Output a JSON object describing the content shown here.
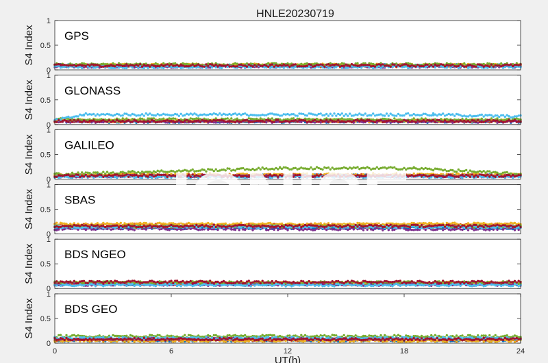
{
  "figure_title": "HNLE20230719",
  "watermark": "IONISE",
  "colors": [
    "#0072bd",
    "#d95319",
    "#edb120",
    "#7e2f8e",
    "#77ac30",
    "#4dbeee",
    "#a2142f"
  ],
  "chart_data": [
    {
      "type": "scatter",
      "panel_label": "GPS",
      "ylabel": "S4 Index",
      "xlim": [
        0,
        24
      ],
      "ylim": [
        0,
        1
      ],
      "yticks": [
        "0",
        "0.5",
        "1"
      ],
      "xticks": [],
      "xlabel": "",
      "series": [
        {
          "x": [
            0,
            24
          ],
          "y": [
            0.09,
            0.09
          ]
        },
        {
          "x": [
            0,
            24
          ],
          "y": [
            0.08,
            0.08
          ]
        },
        {
          "x": [
            0,
            24
          ],
          "y": [
            0.1,
            0.1
          ]
        },
        {
          "x": [
            0,
            24
          ],
          "y": [
            0.07,
            0.07
          ]
        },
        {
          "x": [
            0,
            24
          ],
          "y": [
            0.11,
            0.11
          ]
        },
        {
          "x": [
            0,
            24
          ],
          "y": [
            0.06,
            0.06
          ]
        },
        {
          "x": [
            0,
            24
          ],
          "y": [
            0.09,
            0.09
          ]
        }
      ]
    },
    {
      "type": "scatter",
      "panel_label": "GLONASS",
      "ylabel": "S4 Index",
      "xlim": [
        0,
        24
      ],
      "ylim": [
        0,
        1
      ],
      "yticks": [
        "0",
        "0.5",
        "1"
      ],
      "xticks": [],
      "xlabel": "",
      "series": [
        {
          "x": [
            0,
            24
          ],
          "y": [
            0.06,
            0.06
          ]
        },
        {
          "x": [
            0,
            24
          ],
          "y": [
            0.07,
            0.07
          ]
        },
        {
          "x": [
            0,
            24
          ],
          "y": [
            0.08,
            0.08
          ]
        },
        {
          "x": [
            0,
            24
          ],
          "y": [
            0.06,
            0.06
          ]
        },
        {
          "x": [
            0,
            24
          ],
          "y": [
            0.1,
            0.1
          ]
        },
        {
          "x": [
            0,
            1.5,
            19.5,
            24
          ],
          "y": [
            0.08,
            0.2,
            0.2,
            0.16
          ]
        },
        {
          "x": [
            0,
            24
          ],
          "y": [
            0.07,
            0.07
          ]
        }
      ]
    },
    {
      "type": "scatter",
      "panel_label": "GALILEO",
      "ylabel": "S4 Index",
      "xlim": [
        0,
        24
      ],
      "ylim": [
        0,
        1
      ],
      "yticks": [
        "0",
        "0.5",
        "1"
      ],
      "xticks": [],
      "xlabel": "",
      "series": [
        {
          "x": [
            0,
            24
          ],
          "y": [
            0.07,
            0.07
          ]
        },
        {
          "x": [
            0,
            24
          ],
          "y": [
            0.08,
            0.08
          ]
        },
        {
          "x": [
            0,
            24
          ],
          "y": [
            0.09,
            0.09
          ]
        },
        {
          "x": [
            0,
            24
          ],
          "y": [
            0.06,
            0.06
          ]
        },
        {
          "x": [
            0,
            11.6,
            18.5,
            24
          ],
          "y": [
            0.1,
            0.22,
            0.22,
            0.1
          ]
        },
        {
          "x": [
            0,
            24
          ],
          "y": [
            0.05,
            0.05
          ]
        },
        {
          "x": [
            0,
            24
          ],
          "y": [
            0.07,
            0.07
          ]
        }
      ]
    },
    {
      "type": "scatter",
      "panel_label": "SBAS",
      "ylabel": "S4 Index",
      "xlim": [
        0,
        24
      ],
      "ylim": [
        0,
        1
      ],
      "yticks": [
        "0",
        "0.5",
        "1"
      ],
      "xticks": [],
      "xlabel": "",
      "series": [
        {
          "x": [
            0,
            24
          ],
          "y": [
            0.12,
            0.12
          ]
        },
        {
          "x": [
            0,
            24
          ],
          "y": [
            0.18,
            0.18
          ]
        },
        {
          "x": [
            0,
            24
          ],
          "y": [
            0.2,
            0.2
          ]
        },
        {
          "x": [
            0,
            24
          ],
          "y": [
            0.1,
            0.1
          ]
        },
        {
          "x": [
            0,
            24
          ],
          "y": [
            0.15,
            0.15
          ]
        },
        {
          "x": [
            0,
            24
          ],
          "y": [
            0.14,
            0.14
          ]
        },
        {
          "x": [
            0,
            24
          ],
          "y": [
            0.16,
            0.16
          ]
        }
      ]
    },
    {
      "type": "scatter",
      "panel_label": "BDS NGEO",
      "ylabel": "S4 Index",
      "xlim": [
        0,
        24
      ],
      "ylim": [
        0,
        1
      ],
      "yticks": [
        "0",
        "0.5",
        "1"
      ],
      "xticks": [],
      "xlabel": "",
      "series": [
        {
          "x": [
            0,
            24
          ],
          "y": [
            0.09,
            0.09
          ]
        },
        {
          "x": [
            0,
            24
          ],
          "y": [
            0.1,
            0.1
          ]
        },
        {
          "x": [
            0,
            24
          ],
          "y": [
            0.11,
            0.11
          ]
        },
        {
          "x": [
            0,
            24
          ],
          "y": [
            0.08,
            0.08
          ]
        },
        {
          "x": [
            0,
            24
          ],
          "y": [
            0.12,
            0.12
          ]
        },
        {
          "x": [
            0,
            24
          ],
          "y": [
            0.07,
            0.07
          ]
        },
        {
          "x": [
            0,
            24
          ],
          "y": [
            0.13,
            0.13
          ]
        }
      ]
    },
    {
      "type": "scatter",
      "panel_label": "BDS GEO",
      "ylabel": "S4 Index",
      "xlim": [
        0,
        24
      ],
      "ylim": [
        0,
        1
      ],
      "yticks": [
        "0",
        "0.5",
        "1"
      ],
      "xticks": [
        "0",
        "6",
        "12",
        "18",
        "24"
      ],
      "xlabel": "UT(h)",
      "series": [
        {
          "x": [
            0,
            24
          ],
          "y": [
            0.06,
            0.06
          ]
        },
        {
          "x": [
            0,
            24
          ],
          "y": [
            0.07,
            0.07
          ]
        },
        {
          "x": [
            0,
            24
          ],
          "y": [
            0.05,
            0.05
          ]
        },
        {
          "x": [
            0,
            24
          ],
          "y": [
            0.09,
            0.09
          ]
        },
        {
          "x": [
            0,
            24
          ],
          "y": [
            0.14,
            0.14
          ]
        },
        {
          "x": [
            0,
            24
          ],
          "y": [
            0.1,
            0.1
          ]
        },
        {
          "x": [
            0,
            24
          ],
          "y": [
            0.08,
            0.08
          ]
        }
      ]
    }
  ]
}
